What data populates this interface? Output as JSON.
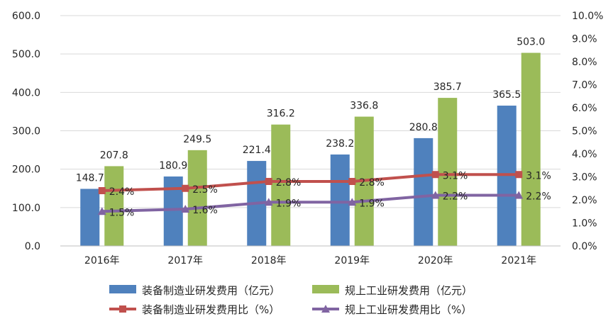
{
  "chart_data": {
    "type": "bar",
    "categories": [
      "2016年",
      "2017年",
      "2018年",
      "2019年",
      "2020年",
      "2021年"
    ],
    "left_axis": {
      "ylim": [
        0,
        600
      ],
      "ticks": [
        "0.0",
        "100.0",
        "200.0",
        "300.0",
        "400.0",
        "500.0",
        "600.0"
      ]
    },
    "right_axis": {
      "ylim": [
        0,
        10
      ],
      "ticks": [
        "0.0%",
        "1.0%",
        "2.0%",
        "3.0%",
        "4.0%",
        "5.0%",
        "6.0%",
        "7.0%",
        "8.0%",
        "9.0%",
        "10.0%"
      ]
    },
    "grid": true,
    "legend_position": "bottom",
    "series": [
      {
        "name": "装备制造业研发费用（亿元）",
        "type": "bar",
        "axis": "left",
        "color": "#4F81BD",
        "values": [
          148.7,
          180.9,
          221.4,
          238.2,
          280.8,
          365.5
        ],
        "labels": [
          "148.7",
          "180.9",
          "221.4",
          "238.2",
          "280.8",
          "365.5"
        ]
      },
      {
        "name": "规上工业研发费用（亿元）",
        "type": "bar",
        "axis": "left",
        "color": "#9BBB59",
        "values": [
          207.8,
          249.5,
          316.2,
          336.8,
          385.7,
          503.0
        ],
        "labels": [
          "207.8",
          "249.5",
          "316.2",
          "336.8",
          "385.7",
          "503.0"
        ]
      },
      {
        "name": "装备制造业研发费用比（%）",
        "type": "line",
        "axis": "right",
        "color": "#C0504D",
        "marker": "square",
        "values": [
          2.4,
          2.5,
          2.8,
          2.8,
          3.1,
          3.1
        ],
        "labels": [
          "2.4%",
          "2.5%",
          "2.8%",
          "2.8%",
          "3.1%",
          "3.1%"
        ]
      },
      {
        "name": "规上工业研发费用比（%）",
        "type": "line",
        "axis": "right",
        "color": "#8064A2",
        "marker": "triangle",
        "values": [
          1.5,
          1.6,
          1.9,
          1.9,
          2.2,
          2.2
        ],
        "labels": [
          "1.5%",
          "1.6%",
          "1.9%",
          "1.9%",
          "2.2%",
          "2.2%"
        ]
      }
    ]
  }
}
